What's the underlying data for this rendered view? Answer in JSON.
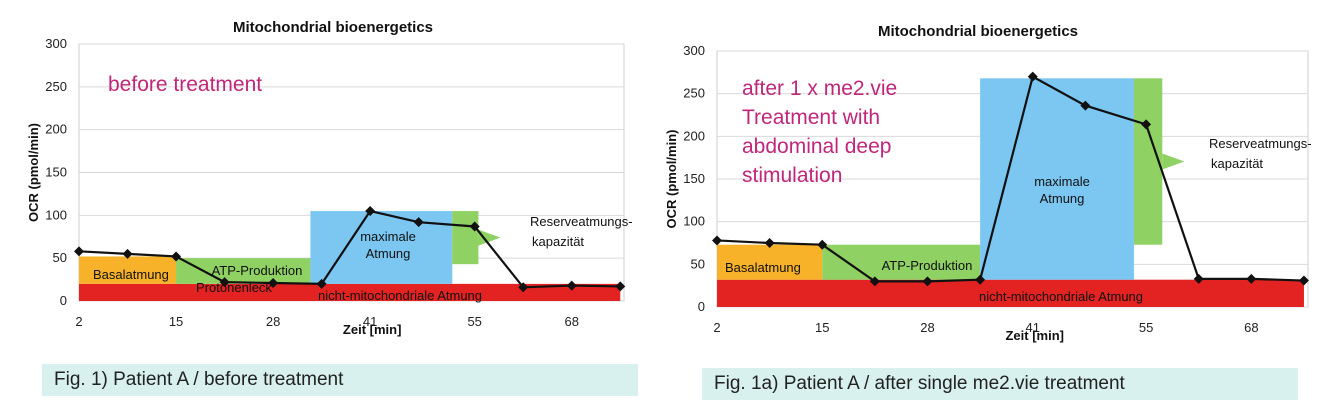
{
  "chart_data": [
    {
      "type": "line",
      "title": "Mitochondrial bioenergetics",
      "xlabel": "Zeit [min]",
      "ylabel": "OCR (pmol/min)",
      "xlim": [
        2,
        75
      ],
      "ylim": [
        0,
        300
      ],
      "x_ticks": [
        2,
        15,
        28,
        41,
        55,
        68
      ],
      "y_ticks": [
        0,
        50,
        100,
        150,
        200,
        250,
        300
      ],
      "grid": true,
      "series": [
        {
          "x": [
            2,
            8.5,
            15,
            21.5,
            28,
            34.5,
            41,
            47.5,
            55,
            61.5,
            68,
            74.5
          ],
          "y": [
            58,
            55,
            52,
            22,
            21,
            20,
            105,
            92,
            87,
            16,
            18,
            17
          ]
        }
      ],
      "annotation": "before treatment",
      "regions": [
        {
          "label": "nicht-mitochondriale Atmung",
          "x0": 2,
          "x1": 74.5,
          "y0": 0,
          "y1": 20,
          "color": "#e32222"
        },
        {
          "label": "Basalatmung",
          "x0": 2,
          "x1": 15,
          "y0": 20,
          "y1": 52,
          "color": "#f7b229"
        },
        {
          "label": "ATP-Produktion",
          "x0": 15,
          "x1": 33,
          "y0": 20,
          "y1": 50,
          "color": "#8fd163"
        },
        {
          "label": "Protonenleck",
          "x0": 15,
          "x1": 33,
          "y0": 0,
          "y1": 0,
          "color": "#7bc7f2"
        },
        {
          "label": "maximale Atmung",
          "x0": 33,
          "x1": 52,
          "y0": 20,
          "y1": 105,
          "color": "#7bc7f2"
        },
        {
          "label": "Reserveatmungs-kapazität",
          "x0": 52,
          "x1": 55.5,
          "y0": 43,
          "y1": 105,
          "color": "#8fd163"
        }
      ],
      "caption": "Fig. 1)   Patient A / before treatment"
    },
    {
      "type": "line",
      "title": "Mitochondrial bioenergetics",
      "xlabel": "Zeit [min]",
      "ylabel": "OCR (pmol/min)",
      "xlim": [
        2,
        75
      ],
      "ylim": [
        0,
        300
      ],
      "x_ticks": [
        2,
        15,
        28,
        41,
        55,
        68
      ],
      "y_ticks": [
        0,
        50,
        100,
        150,
        200,
        250,
        300
      ],
      "grid": true,
      "series": [
        {
          "x": [
            2,
            8.5,
            15,
            21.5,
            28,
            34.5,
            41,
            47.5,
            55,
            61.5,
            68,
            74.5
          ],
          "y": [
            78,
            75,
            73,
            30,
            30,
            32,
            270,
            236,
            214,
            33,
            33,
            31
          ]
        }
      ],
      "annotation": [
        "after 1 x me2.vie",
        "Treatment with",
        "abdominal deep",
        "stimulation"
      ],
      "regions": [
        {
          "label": "nicht-mitochondriale Atmung",
          "x0": 2,
          "x1": 74.5,
          "y0": 0,
          "y1": 32,
          "color": "#e32222"
        },
        {
          "label": "Basalatmung",
          "x0": 2,
          "x1": 15,
          "y0": 32,
          "y1": 73,
          "color": "#f7b229"
        },
        {
          "label": "ATP-Produktion",
          "x0": 15,
          "x1": 34.5,
          "y0": 32,
          "y1": 73,
          "color": "#8fd163"
        },
        {
          "label": "maximale Atmung",
          "x0": 34.5,
          "x1": 53.5,
          "y0": 32,
          "y1": 268,
          "color": "#7bc7f2"
        },
        {
          "label": "Reserveatmungs-kapazität",
          "x0": 53.5,
          "x1": 57,
          "y0": 73,
          "y1": 268,
          "color": "#8fd163"
        }
      ],
      "caption": "Fig. 1a)   Patient A / after single me2.vie treatment"
    }
  ],
  "colors": {
    "annotation": "#c0267a",
    "line": "#111111",
    "caption_bg": "#d8f1ee"
  }
}
